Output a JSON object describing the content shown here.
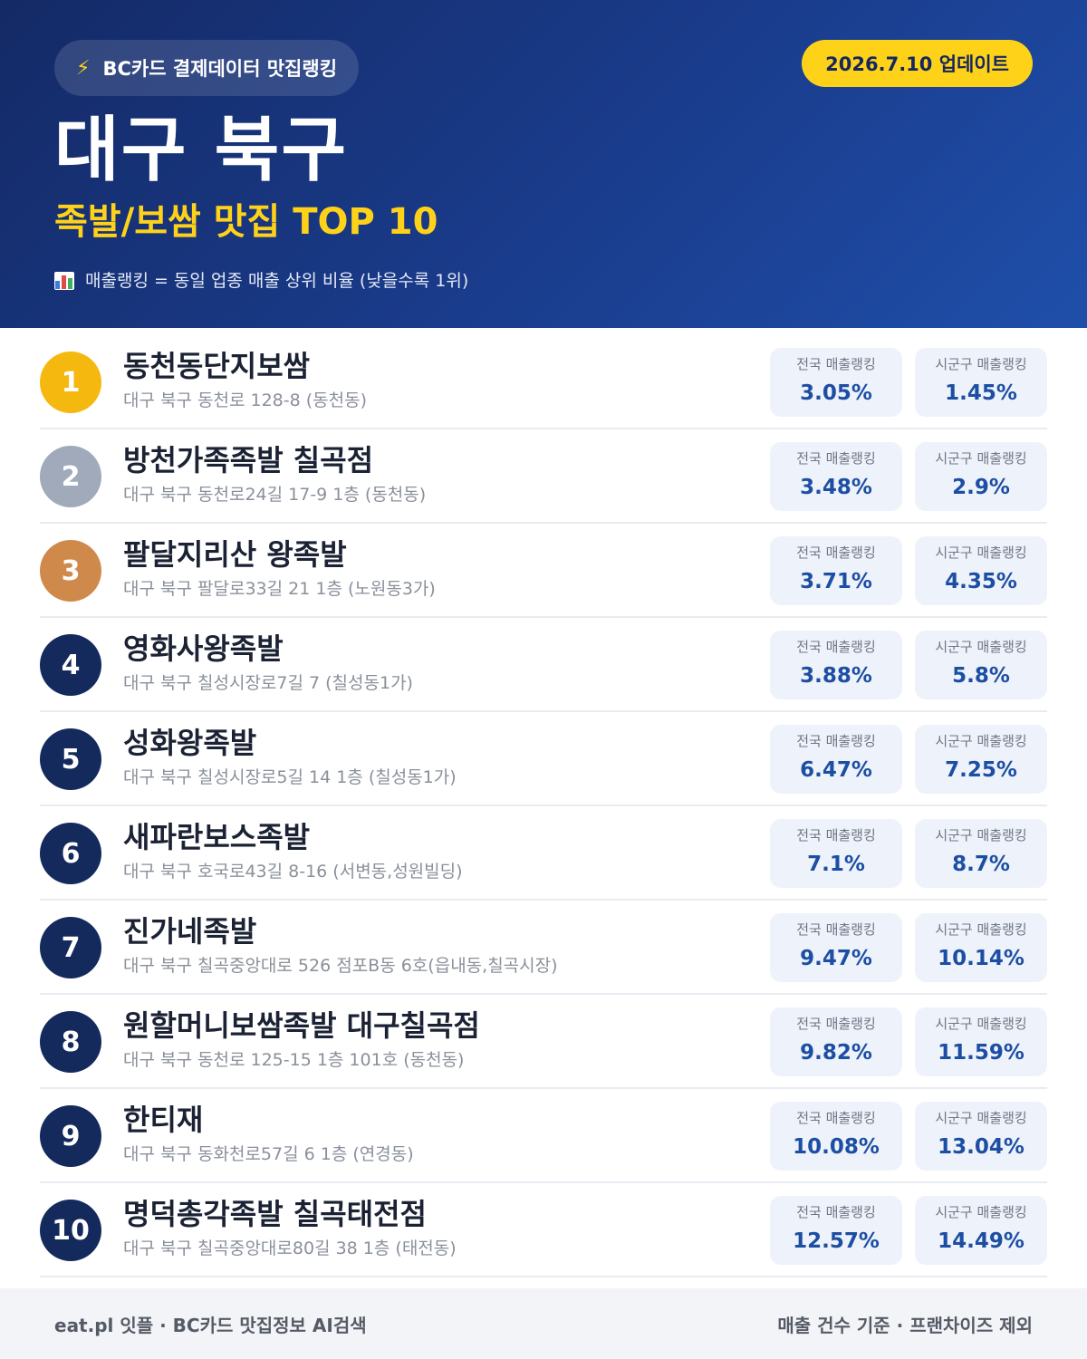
{
  "header": {
    "source_label": "BC카드 결제데이터 맛집랭킹",
    "update_label": "2026.7.10 업데이트",
    "region": "대구 북구",
    "category": "족발/보쌈 맛집 TOP 10",
    "note": "매출랭킹 = 동일 업종 매출 상위 비율 (낮을수록 1위)"
  },
  "stat_labels": {
    "national": "전국 매출랭킹",
    "local": "시군구 매출랭킹"
  },
  "rankings": [
    {
      "rank": "1",
      "name": "동천동단지보쌈",
      "address": "대구 북구 동천로 128-8 (동천동)",
      "national": "3.05%",
      "local": "1.45%"
    },
    {
      "rank": "2",
      "name": "방천가족족발 칠곡점",
      "address": "대구 북구 동천로24길 17-9 1층 (동천동)",
      "national": "3.48%",
      "local": "2.9%"
    },
    {
      "rank": "3",
      "name": "팔달지리산 왕족발",
      "address": "대구 북구 팔달로33길 21 1층 (노원동3가)",
      "national": "3.71%",
      "local": "4.35%"
    },
    {
      "rank": "4",
      "name": "영화사왕족발",
      "address": "대구 북구 칠성시장로7길 7 (칠성동1가)",
      "national": "3.88%",
      "local": "5.8%"
    },
    {
      "rank": "5",
      "name": "성화왕족발",
      "address": "대구 북구 칠성시장로5길 14 1층 (칠성동1가)",
      "national": "6.47%",
      "local": "7.25%"
    },
    {
      "rank": "6",
      "name": "새파란보스족발",
      "address": "대구 북구 호국로43길 8-16 (서변동,성원빌딩)",
      "national": "7.1%",
      "local": "8.7%"
    },
    {
      "rank": "7",
      "name": "진가네족발",
      "address": "대구 북구 칠곡중앙대로 526 점포B동 6호(읍내동,칠곡시장)",
      "national": "9.47%",
      "local": "10.14%"
    },
    {
      "rank": "8",
      "name": "원할머니보쌈족발 대구칠곡점",
      "address": "대구 북구 동천로 125-15 1층 101호 (동천동)",
      "national": "9.82%",
      "local": "11.59%"
    },
    {
      "rank": "9",
      "name": "한티재",
      "address": "대구 북구 동화천로57길 6 1층 (연경동)",
      "national": "10.08%",
      "local": "13.04%"
    },
    {
      "rank": "10",
      "name": "명덕총각족발 칠곡태전점",
      "address": "대구 북구 칠곡중앙대로80길 38 1층 (태전동)",
      "national": "12.57%",
      "local": "14.49%"
    }
  ],
  "footer": {
    "left": "eat.pl 잇플 · BC카드 맛집정보 AI검색",
    "right": "매출 건수 기준 · 프랜차이즈 제외"
  },
  "colors": {
    "header_dark": "#142a66",
    "header_light": "#1f4faa",
    "accent_yellow": "#ffd21a",
    "gold": "#f5b80f",
    "silver": "#a0aabb",
    "bronze": "#cf8a4b",
    "navy_badge": "#142a5c",
    "value_blue": "#1c4ea3"
  },
  "icons": {
    "source": "lightning-icon",
    "note": "bar-chart-icon"
  }
}
